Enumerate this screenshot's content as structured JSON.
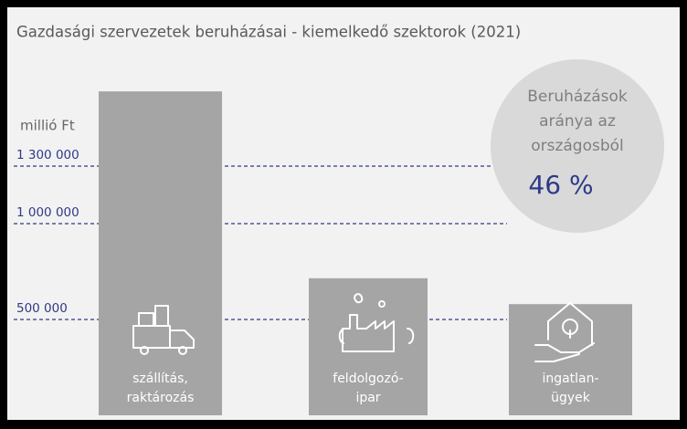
{
  "chart_data": {
    "type": "bar",
    "title": "Gazdasági szervezetek beruházásai - kiemelkedő szektorok (2021)",
    "y_axis_label": "millió Ft",
    "categories": [
      [
        "szállítás,",
        "raktározás"
      ],
      [
        "feldolgozó-",
        "ipar"
      ],
      [
        "ingatlan-",
        "ügyek"
      ]
    ],
    "values": [
      1690000,
      715000,
      580000
    ],
    "color": "#a6a5a6",
    "ylim": [
      0,
      2000000
    ],
    "yticks": [
      {
        "value": 500000,
        "label": "500 000"
      },
      {
        "value": 1000000,
        "label": "1 000 000"
      },
      {
        "value": 1300000,
        "label": "1 300 000"
      }
    ],
    "grid": true,
    "annotation": {
      "lines": [
        "Beruházások",
        "aránya az",
        "országosból"
      ],
      "value": 46,
      "label": "46 %"
    }
  }
}
